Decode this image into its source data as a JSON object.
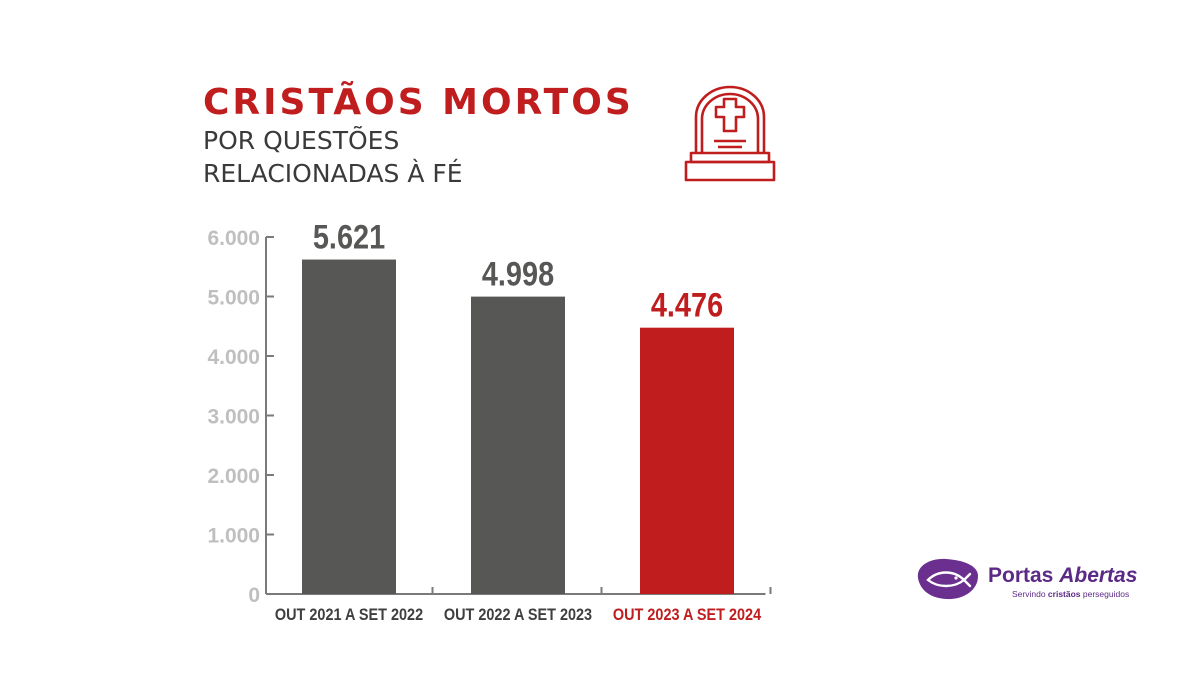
{
  "header": {
    "title": "CRISTÃOS MORTOS",
    "subtitle_line1": "POR QUESTÕES",
    "subtitle_line2": "RELACIONADAS À FÉ",
    "icon": "tombstone-icon"
  },
  "logo": {
    "name_part1": "Portas ",
    "name_part2": "Abertas",
    "tagline_part1": "Servindo ",
    "tagline_part2": "cristãos",
    "tagline_part3": " perseguidos",
    "icon": "fish-logo-icon"
  },
  "colors": {
    "red": "#c01d1f",
    "gray_bar": "#575756",
    "axis_gray": "#bfbfbf",
    "purple": "#5b2a86"
  },
  "chart_data": {
    "type": "bar",
    "categories": [
      "OUT 2021 A SET 2022",
      "OUT 2022 A SET 2023",
      "OUT 2023 A SET 2024"
    ],
    "values": [
      5621,
      4998,
      4476
    ],
    "value_labels": [
      "5.621",
      "4.998",
      "4.476"
    ],
    "highlight_index": 2,
    "yticks": [
      0,
      1000,
      2000,
      3000,
      4000,
      5000,
      6000
    ],
    "ytick_labels": [
      "0",
      "1.000",
      "2.000",
      "3.000",
      "4.000",
      "5.000",
      "6.000"
    ],
    "ylim": [
      0,
      6000
    ],
    "grid": false,
    "legend": "none"
  }
}
